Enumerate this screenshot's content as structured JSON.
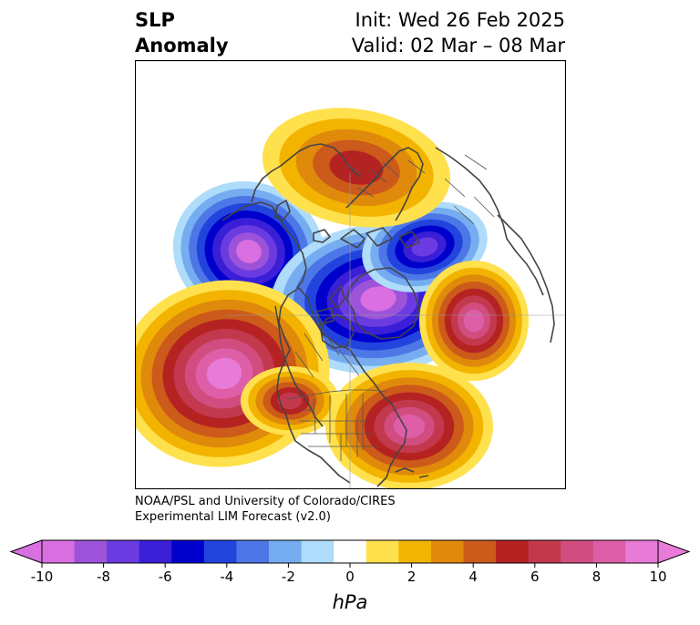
{
  "title": {
    "left_lines": [
      "SLP",
      "Anomaly"
    ],
    "right_lines": [
      "Init: Wed 26 Feb 2025",
      "Valid: 02 Mar – 08 Mar"
    ]
  },
  "credit": {
    "lines": [
      "NOAA/PSL and University of Colorado/CIRES",
      "Experimental LIM Forecast (v2.0)"
    ]
  },
  "colorbar": {
    "unit": "hPa",
    "tick_labels": [
      "-10",
      "-8",
      "-6",
      "-4",
      "-2",
      "0",
      "2",
      "4",
      "6",
      "8",
      "10"
    ],
    "colors": [
      "#d96fe0",
      "#9d53d9",
      "#6a3be0",
      "#3a1fd6",
      "#0000cc",
      "#2244dd",
      "#4d77e6",
      "#76adf0",
      "#aedcfa",
      "#ffffff",
      "#ffe14d",
      "#f2b400",
      "#e08a0c",
      "#cc5a1a",
      "#b52222",
      "#c2384d",
      "#d14d7f",
      "#de5fa8",
      "#e87ad8"
    ],
    "under_color": "#d96fe0",
    "over_color": "#e87ad8"
  },
  "map": {
    "background": "#ffffff",
    "coastline_color": "#444444",
    "features": [
      {
        "type": "low",
        "label": "Western Canada low",
        "peak_anomaly": -10
      },
      {
        "type": "low",
        "label": "Hudson Bay / Canadian Arctic low",
        "peak_anomaly": -10
      },
      {
        "type": "low",
        "label": "Baffin Bay low",
        "peak_anomaly": -7
      },
      {
        "type": "high",
        "label": "Northeast Pacific high",
        "peak_anomaly": 10
      },
      {
        "type": "high",
        "label": "Western Atlantic high",
        "peak_anomaly": 8
      },
      {
        "type": "high",
        "label": "North Atlantic high",
        "peak_anomaly": 8
      },
      {
        "type": "high",
        "label": "Siberian high",
        "peak_anomaly": 5
      },
      {
        "type": "high",
        "label": "Southwest US high",
        "peak_anomaly": 6
      }
    ]
  }
}
